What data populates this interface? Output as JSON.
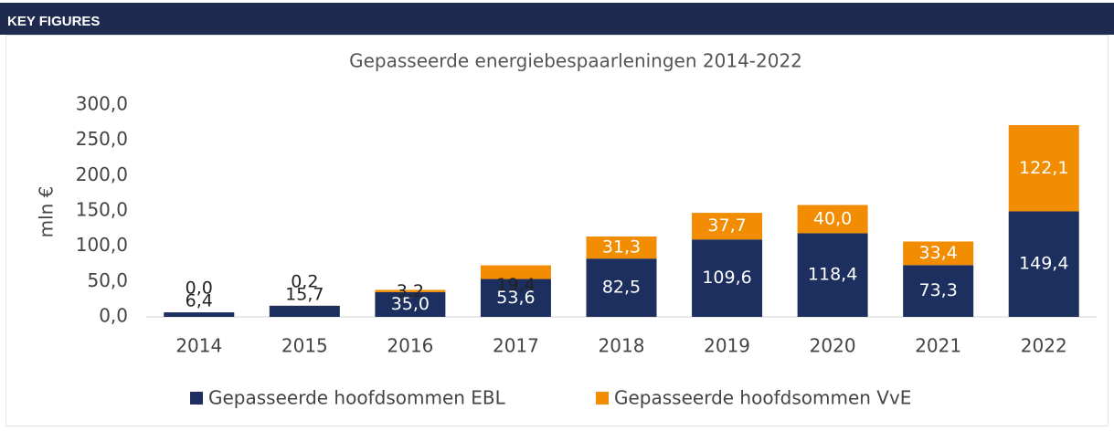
{
  "header": {
    "title": "KEY FIGURES"
  },
  "chart_data": {
    "type": "stacked_bar",
    "title": "Gepasseerde energiebespaarleningen 2014-2022",
    "y_label": "mln €",
    "categories": [
      "2014",
      "2015",
      "2016",
      "2017",
      "2018",
      "2019",
      "2020",
      "2021",
      "2022"
    ],
    "series": [
      {
        "name": "Gepasseerde hoofdsommen EBL",
        "color": "#1c2f5e",
        "values": [
          6.4,
          15.7,
          35.0,
          53.6,
          82.5,
          109.6,
          118.4,
          73.3,
          149.4
        ],
        "value_labels": [
          "6,4",
          "15,7",
          "35,0",
          "53,6",
          "82,5",
          "109,6",
          "118,4",
          "73,3",
          "149,4"
        ]
      },
      {
        "name": "Gepasseerde hoofdsommen VvE",
        "color": "#f28c00",
        "values": [
          0.0,
          0.2,
          3.2,
          19.4,
          31.3,
          37.7,
          40.0,
          33.4,
          122.1
        ],
        "value_labels": [
          "0,0",
          "0,2",
          "3,2",
          "19,4",
          "31,3",
          "37,7",
          "40,0",
          "33,4",
          "122,1"
        ]
      }
    ],
    "ylim": [
      0,
      300
    ],
    "yticks": [
      {
        "value": 0,
        "label": "0,0"
      },
      {
        "value": 50,
        "label": "50,0"
      },
      {
        "value": 100,
        "label": "100,0"
      },
      {
        "value": 150,
        "label": "150,0"
      },
      {
        "value": 200,
        "label": "200,0"
      },
      {
        "value": 250,
        "label": "250,0"
      },
      {
        "value": 300,
        "label": "300,0"
      }
    ],
    "legend": "bottom"
  }
}
